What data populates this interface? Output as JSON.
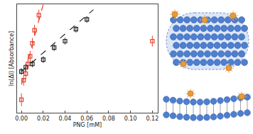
{
  "chart_data": {
    "type": "scatter",
    "xlabel": "PNG [mM]",
    "ylabel": "ln(ΔI) [Absorbance]",
    "xlim": [
      -0.004,
      0.125
    ],
    "xticks": [
      {
        "value": 0,
        "label": "0.00"
      },
      0.02,
      0.04,
      0.06,
      0.08,
      {
        "value": 0.1,
        "label": "0.10"
      },
      0.12
    ],
    "ylim": [
      0,
      1
    ],
    "tick_labels": "x",
    "grid": false,
    "series": [
      {
        "type": "scatter",
        "color": "#e8402a",
        "marker": "square-open",
        "x": [
          0.0,
          0.002,
          0.004,
          0.006,
          0.008,
          0.01,
          0.012,
          0.016,
          0.12
        ],
        "values": [
          0.12,
          0.3,
          0.36,
          0.45,
          0.52,
          0.64,
          0.76,
          0.9,
          0.66
        ],
        "errors": [
          0.06,
          0.05,
          0.05,
          0.05,
          0.05,
          0.05,
          0.05,
          0.05,
          0.05
        ]
      },
      {
        "type": "scatter",
        "color": "#222222",
        "marker": "square-open",
        "x": [
          0.0,
          0.004,
          0.01,
          0.02,
          0.03,
          0.04,
          0.05,
          0.06
        ],
        "values": [
          0.38,
          0.42,
          0.45,
          0.49,
          0.6,
          0.66,
          0.77,
          0.86
        ],
        "errors": [
          0.03,
          0.03,
          0.03,
          0.03,
          0.03,
          0.03,
          0.03,
          0.03
        ]
      },
      {
        "type": "line",
        "color": "#e8402a",
        "line_style": "dashed",
        "x": [
          0.0,
          0.02
        ],
        "values": [
          0.26,
          1.0
        ]
      },
      {
        "type": "line",
        "color": "#222222",
        "line_style": "dashed",
        "x": [
          0.0,
          0.066
        ],
        "values": [
          0.38,
          0.95
        ]
      }
    ]
  }
}
